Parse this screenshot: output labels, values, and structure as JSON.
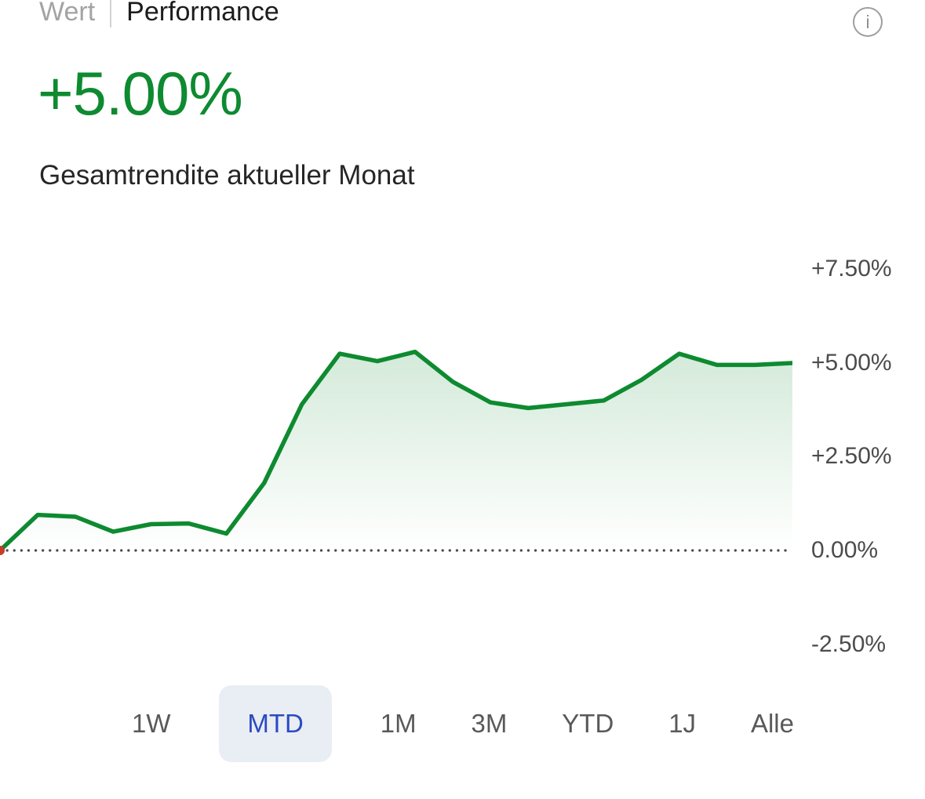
{
  "header": {
    "wert_label": "Wert",
    "performance_label": "Performance",
    "selected_tab": "Performance",
    "info_glyph": "i"
  },
  "summary": {
    "value": "+5.00%",
    "caption": "Gesamtrendite aktueller Monat"
  },
  "chart_data": {
    "type": "area",
    "title": "",
    "xlabel": "",
    "ylabel": "",
    "unit": "%",
    "x": [
      0,
      1,
      2,
      3,
      4,
      5,
      6,
      7,
      8,
      9,
      10,
      11,
      12,
      13,
      14,
      15,
      16,
      17,
      18,
      19,
      20,
      21
    ],
    "values": [
      0.0,
      0.95,
      0.9,
      0.5,
      0.7,
      0.72,
      0.45,
      1.8,
      3.9,
      5.25,
      5.05,
      5.3,
      4.5,
      3.95,
      3.8,
      3.9,
      4.0,
      4.55,
      5.25,
      4.95,
      4.95,
      5.0
    ],
    "baseline": 0,
    "y_ticks": [
      {
        "value": 7.5,
        "label": "+7.50%"
      },
      {
        "value": 5.0,
        "label": "+5.00%"
      },
      {
        "value": 2.5,
        "label": "+2.50%"
      },
      {
        "value": 0.0,
        "label": "0.00%"
      },
      {
        "value": -2.5,
        "label": "-2.50%"
      }
    ],
    "ylim": [
      -3,
      8.4
    ],
    "grid": false,
    "legend_position": "none",
    "line_color": "#0e8a30",
    "fill_top_color": "#0e8a30",
    "fill_top_opacity": 0.18,
    "start_marker_color": "#c83a2a",
    "baseline_style": "dotted"
  },
  "ranges": {
    "options": [
      {
        "label": "1W",
        "selected": false
      },
      {
        "label": "MTD",
        "selected": true
      },
      {
        "label": "1M",
        "selected": false
      },
      {
        "label": "3M",
        "selected": false
      },
      {
        "label": "YTD",
        "selected": false
      },
      {
        "label": "1J",
        "selected": false
      },
      {
        "label": "Alle",
        "selected": false
      }
    ]
  },
  "colors": {
    "positive_green": "#0e8a30",
    "selected_range_blue": "#2a4bc0",
    "selected_range_bg": "#e9edf4"
  }
}
